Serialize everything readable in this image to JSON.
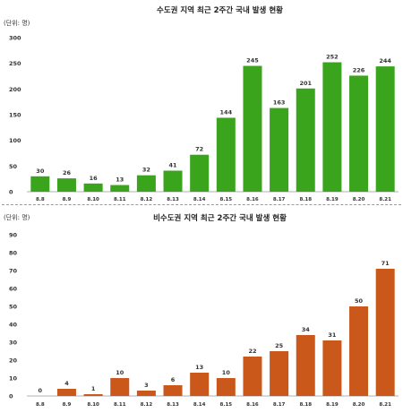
{
  "chart_data": [
    {
      "type": "bar",
      "title": "수도권 지역 최근 2주간 국내 발생 현황",
      "unit_label": "(단위: 명)",
      "categories": [
        "8.8",
        "8.9",
        "8.10",
        "8.11",
        "8.12",
        "8.13",
        "8.14",
        "8.15",
        "8.16",
        "8.17",
        "8.18",
        "8.19",
        "8.20",
        "8.21"
      ],
      "values": [
        30,
        26,
        16,
        13,
        32,
        41,
        72,
        144,
        245,
        163,
        201,
        252,
        226,
        244
      ],
      "ylim": [
        0,
        300
      ],
      "yticks": [
        0,
        50,
        100,
        150,
        200,
        250,
        300
      ],
      "grid": false,
      "bar_color": "#3aa41c"
    },
    {
      "type": "bar",
      "title": "비수도권 지역 최근 2주간 국내 발생 현황",
      "unit_label": "(단위: 명)",
      "categories": [
        "8.8",
        "8.9",
        "8.10",
        "8.11",
        "8.12",
        "8.13",
        "8.14",
        "8.15",
        "8.16",
        "8.17",
        "8.18",
        "8.19",
        "8.20",
        "8.21"
      ],
      "values": [
        0,
        4,
        1,
        10,
        3,
        6,
        13,
        10,
        22,
        25,
        34,
        31,
        50,
        71
      ],
      "ylim": [
        0,
        90
      ],
      "yticks": [
        0,
        10,
        20,
        30,
        40,
        50,
        60,
        70,
        80,
        90
      ],
      "grid": false,
      "bar_color": "#c9581a"
    }
  ]
}
